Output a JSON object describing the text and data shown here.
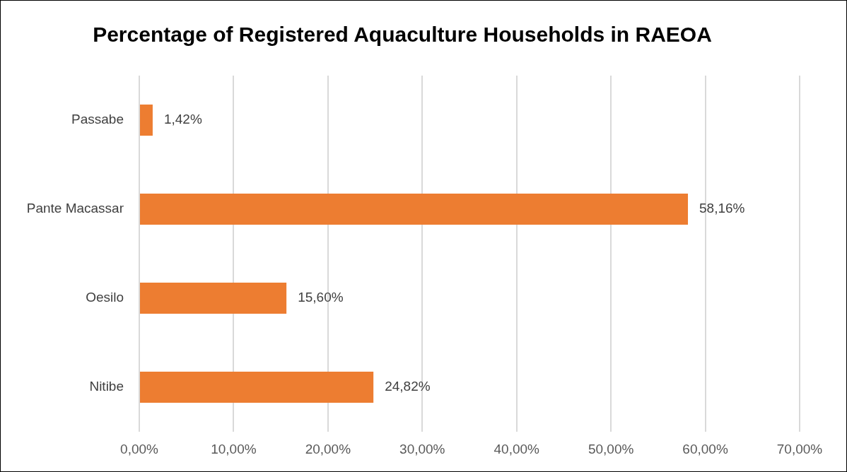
{
  "chart_data": {
    "type": "bar",
    "orientation": "horizontal",
    "title": "Percentage of Registered Aquaculture Households in RAEOA",
    "categories": [
      "Passabe",
      "Pante Macassar",
      "Oesilo",
      "Nitibe"
    ],
    "values": [
      1.42,
      58.16,
      15.6,
      24.82
    ],
    "value_labels": [
      "1,42%",
      "58,16%",
      "15,60%",
      "24,82%"
    ],
    "color": "#ed7d31",
    "xlim": [
      0,
      70
    ],
    "xticks": [
      {
        "value": 0,
        "label": "0,00%"
      },
      {
        "value": 10,
        "label": "10,00%"
      },
      {
        "value": 20,
        "label": "20,00%"
      },
      {
        "value": 30,
        "label": "30,00%"
      },
      {
        "value": 40,
        "label": "40,00%"
      },
      {
        "value": 50,
        "label": "50,00%"
      },
      {
        "value": 60,
        "label": "60,00%"
      },
      {
        "value": 70,
        "label": "70,00%"
      }
    ],
    "grid": "x"
  }
}
